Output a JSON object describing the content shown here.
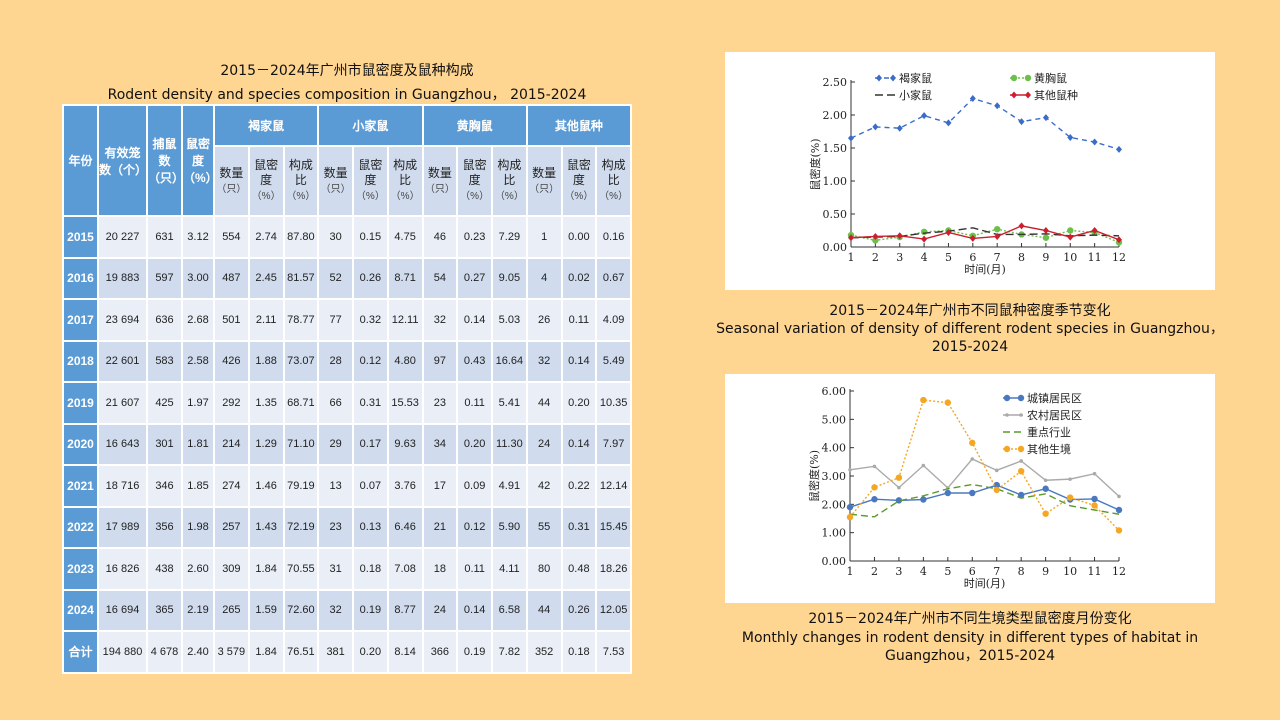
{
  "table": {
    "title_cn": "2015－2024年广州市鼠密度及鼠种构成",
    "title_en": "Rodent density and species composition in Guangzhou， 2015-2024",
    "headers": {
      "year": "年份",
      "cages": "有效笼数（个）",
      "caught": "捕鼠数（只）",
      "density": "鼠密度（%）",
      "species": [
        "褐家鼠",
        "小家鼠",
        "黄胸鼠",
        "其他鼠种"
      ],
      "sub": [
        {
          "l": "数量",
          "u": "（只）"
        },
        {
          "l": "鼠密度",
          "u": "（%）"
        },
        {
          "l": "构成比",
          "u": "（%）"
        }
      ]
    },
    "rows": [
      [
        "2015",
        "20 227",
        "631",
        "3.12",
        "554",
        "2.74",
        "87.80",
        "30",
        "0.15",
        "4.75",
        "46",
        "0.23",
        "7.29",
        "1",
        "0.00",
        "0.16"
      ],
      [
        "2016",
        "19 883",
        "597",
        "3.00",
        "487",
        "2.45",
        "81.57",
        "52",
        "0.26",
        "8.71",
        "54",
        "0.27",
        "9.05",
        "4",
        "0.02",
        "0.67"
      ],
      [
        "2017",
        "23 694",
        "636",
        "2.68",
        "501",
        "2.11",
        "78.77",
        "77",
        "0.32",
        "12.11",
        "32",
        "0.14",
        "5.03",
        "26",
        "0.11",
        "4.09"
      ],
      [
        "2018",
        "22 601",
        "583",
        "2.58",
        "426",
        "1.88",
        "73.07",
        "28",
        "0.12",
        "4.80",
        "97",
        "0.43",
        "16.64",
        "32",
        "0.14",
        "5.49"
      ],
      [
        "2019",
        "21 607",
        "425",
        "1.97",
        "292",
        "1.35",
        "68.71",
        "66",
        "0.31",
        "15.53",
        "23",
        "0.11",
        "5.41",
        "44",
        "0.20",
        "10.35"
      ],
      [
        "2020",
        "16 643",
        "301",
        "1.81",
        "214",
        "1.29",
        "71.10",
        "29",
        "0.17",
        "9.63",
        "34",
        "0.20",
        "11.30",
        "24",
        "0.14",
        "7.97"
      ],
      [
        "2021",
        "18 716",
        "346",
        "1.85",
        "274",
        "1.46",
        "79.19",
        "13",
        "0.07",
        "3.76",
        "17",
        "0.09",
        "4.91",
        "42",
        "0.22",
        "12.14"
      ],
      [
        "2022",
        "17 989",
        "356",
        "1.98",
        "257",
        "1.43",
        "72.19",
        "23",
        "0.13",
        "6.46",
        "21",
        "0.12",
        "5.90",
        "55",
        "0.31",
        "15.45"
      ],
      [
        "2023",
        "16 826",
        "438",
        "2.60",
        "309",
        "1.84",
        "70.55",
        "31",
        "0.18",
        "7.08",
        "18",
        "0.11",
        "4.11",
        "80",
        "0.48",
        "18.26"
      ],
      [
        "2024",
        "16 694",
        "365",
        "2.19",
        "265",
        "1.59",
        "72.60",
        "32",
        "0.19",
        "8.77",
        "24",
        "0.14",
        "6.58",
        "44",
        "0.26",
        "12.05"
      ],
      [
        "合计",
        "194 880",
        "4 678",
        "2.40",
        "3 579",
        "1.84",
        "76.51",
        "381",
        "0.20",
        "8.14",
        "366",
        "0.19",
        "7.82",
        "352",
        "0.18",
        "7.53"
      ]
    ]
  },
  "chart_data": [
    {
      "type": "line",
      "title_cn": "2015－2024年广州市不同鼠种密度季节变化",
      "title_en": "Seasonal variation of density of different rodent species in Guangzhou，2015-2024",
      "xlabel": "时间(月)",
      "ylabel": "鼠密度(%)",
      "x": [
        1,
        2,
        3,
        4,
        5,
        6,
        7,
        8,
        9,
        10,
        11,
        12
      ],
      "ylim": [
        0,
        2.5
      ],
      "yticks": [
        "0.00",
        "0.50",
        "1.00",
        "1.50",
        "2.00",
        "2.50"
      ],
      "legend": "top",
      "series": [
        {
          "name": "褐家鼠",
          "color": "#3a6cc8",
          "dash": "5,4",
          "marker": "diamond",
          "values": [
            1.65,
            1.82,
            1.8,
            1.99,
            1.88,
            2.25,
            2.14,
            1.9,
            1.96,
            1.66,
            1.59,
            1.48
          ]
        },
        {
          "name": "黄胸鼠",
          "color": "#6cc04a",
          "dash": "2,2",
          "marker": "circle",
          "values": [
            0.18,
            0.1,
            0.15,
            0.23,
            0.25,
            0.17,
            0.27,
            0.19,
            0.14,
            0.25,
            0.22,
            0.07
          ]
        },
        {
          "name": "小家鼠",
          "color": "#333333",
          "dash": "8,4",
          "marker": "none",
          "values": [
            0.14,
            0.15,
            0.16,
            0.21,
            0.24,
            0.29,
            0.19,
            0.19,
            0.2,
            0.17,
            0.18,
            0.17
          ]
        },
        {
          "name": "其他鼠种",
          "color": "#cc1f2e",
          "dash": "",
          "marker": "diamond",
          "values": [
            0.14,
            0.16,
            0.17,
            0.12,
            0.22,
            0.13,
            0.16,
            0.32,
            0.25,
            0.15,
            0.25,
            0.11
          ]
        }
      ]
    },
    {
      "type": "line",
      "title_cn": "2015－2024年广州市不同生境类型鼠密度月份变化",
      "title_en": "Monthly changes in rodent density in different types of habitat in Guangzhou，2015-2024",
      "xlabel": "时间(月)",
      "ylabel": "鼠密度(%)",
      "x": [
        1,
        2,
        3,
        4,
        5,
        6,
        7,
        8,
        9,
        10,
        11,
        12
      ],
      "ylim": [
        0,
        6
      ],
      "yticks": [
        "0.00",
        "1.00",
        "2.00",
        "3.00",
        "4.00",
        "5.00",
        "6.00"
      ],
      "legend": "top-right",
      "series": [
        {
          "name": "城镇居民区",
          "color": "#4a78c0",
          "dash": "",
          "marker": "circle",
          "values": [
            1.9,
            2.18,
            2.14,
            2.17,
            2.4,
            2.4,
            2.68,
            2.33,
            2.55,
            2.17,
            2.19,
            1.8
          ]
        },
        {
          "name": "农村居民区",
          "color": "#aaaaaa",
          "dash": "",
          "marker": "small",
          "values": [
            3.22,
            3.34,
            2.59,
            3.37,
            2.58,
            3.6,
            3.2,
            3.53,
            2.85,
            2.89,
            3.08,
            2.28
          ]
        },
        {
          "name": "重点行业",
          "color": "#5a9a2a",
          "dash": "7,4",
          "marker": "none",
          "values": [
            1.65,
            1.56,
            2.12,
            2.3,
            2.55,
            2.7,
            2.55,
            2.22,
            2.37,
            1.95,
            1.8,
            1.65
          ]
        },
        {
          "name": "其他生境",
          "color": "#f5a623",
          "dash": "2,2",
          "marker": "circle",
          "values": [
            1.55,
            2.6,
            2.94,
            5.68,
            5.59,
            4.17,
            2.51,
            3.17,
            1.67,
            2.24,
            1.96,
            1.08
          ]
        }
      ]
    }
  ]
}
